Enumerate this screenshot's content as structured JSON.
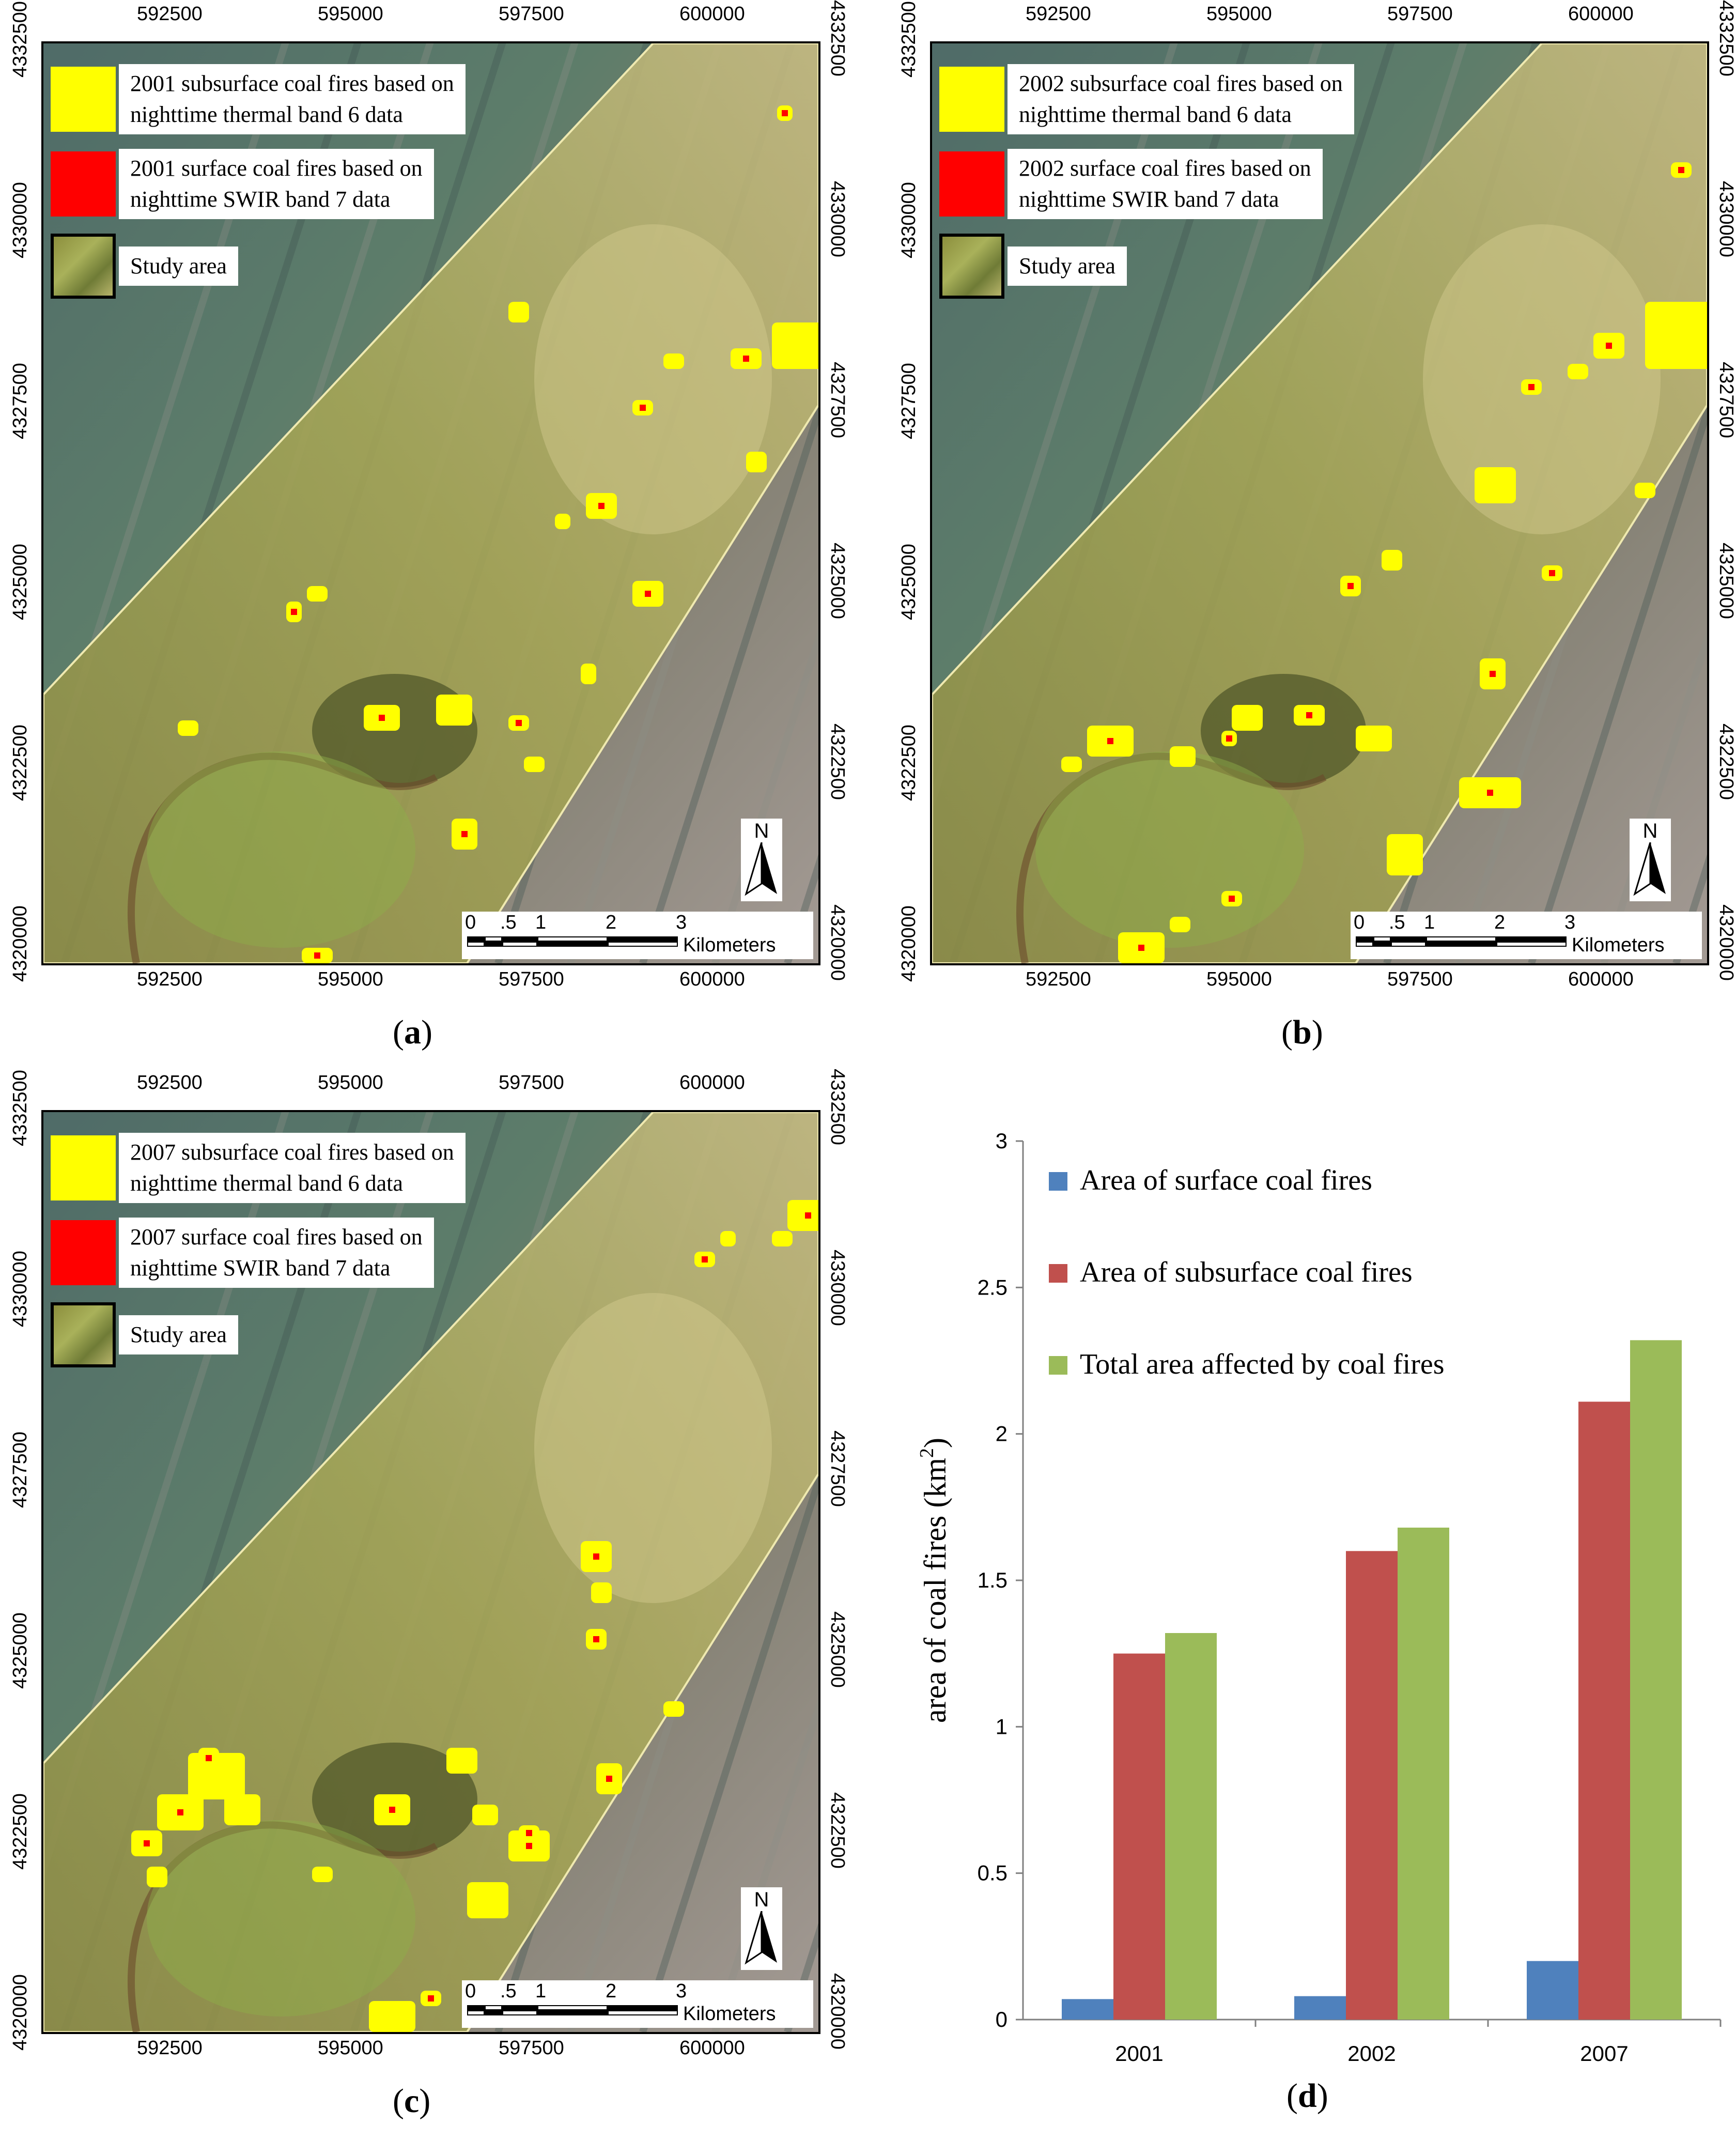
{
  "panels": [
    {
      "id": "a",
      "caption_letter": "a",
      "legend": {
        "subsurface_label": "2001 subsurface coal fires based on\nnighttime thermal band 6 data",
        "surface_label": "2001 surface coal fires based on\nnighttime SWIR band 7 data",
        "study_label": "Study area"
      }
    },
    {
      "id": "b",
      "caption_letter": "b",
      "legend": {
        "subsurface_label": "2002 subsurface coal fires based on\nnighttime thermal band 6 data",
        "surface_label": "2002 surface coal fires based on\nnighttime SWIR band 7 data",
        "study_label": "Study area"
      }
    },
    {
      "id": "c",
      "caption_letter": "c",
      "legend": {
        "subsurface_label": "2007 subsurface coal fires based on\nnighttime thermal band 6 data",
        "surface_label": "2007 surface coal fires based on\nnighttime SWIR band 7 data",
        "study_label": "Study area"
      }
    }
  ],
  "map_axes": {
    "x_ticks": [
      "592500",
      "595000",
      "597500",
      "600000"
    ],
    "y_ticks": [
      "4332500",
      "4330000",
      "4327500",
      "4325000",
      "4322500",
      "4320000"
    ],
    "north_label": "N",
    "scale_ticks": [
      "0",
      ".5",
      "1",
      "2",
      "3"
    ],
    "scale_unit": "Kilometers"
  },
  "colors": {
    "subsurface": "#ffff00",
    "surface": "#ff0000",
    "series_surface": "#4f81bd",
    "series_subsurface": "#c0504d",
    "series_total": "#9bbb59"
  },
  "chart_caption_letter": "d",
  "chart_data": {
    "type": "bar",
    "categories": [
      "2001",
      "2002",
      "2007"
    ],
    "series": [
      {
        "name": "Area of surface coal fires",
        "values": [
          0.07,
          0.08,
          0.2
        ]
      },
      {
        "name": "Area of subsurface coal fires",
        "values": [
          1.25,
          1.6,
          2.11
        ]
      },
      {
        "name": "Total area affected by coal fires",
        "values": [
          1.32,
          1.68,
          2.32
        ]
      }
    ],
    "ylabel": "area of coal fires (km",
    "ylabel_sup": "2",
    "ylabel_close": ")",
    "ylim": [
      0,
      3
    ],
    "yticks": [
      "0",
      "0.5",
      "1",
      "1.5",
      "2",
      "2.5",
      "3"
    ],
    "legend_position": "top-left",
    "grid": false
  }
}
